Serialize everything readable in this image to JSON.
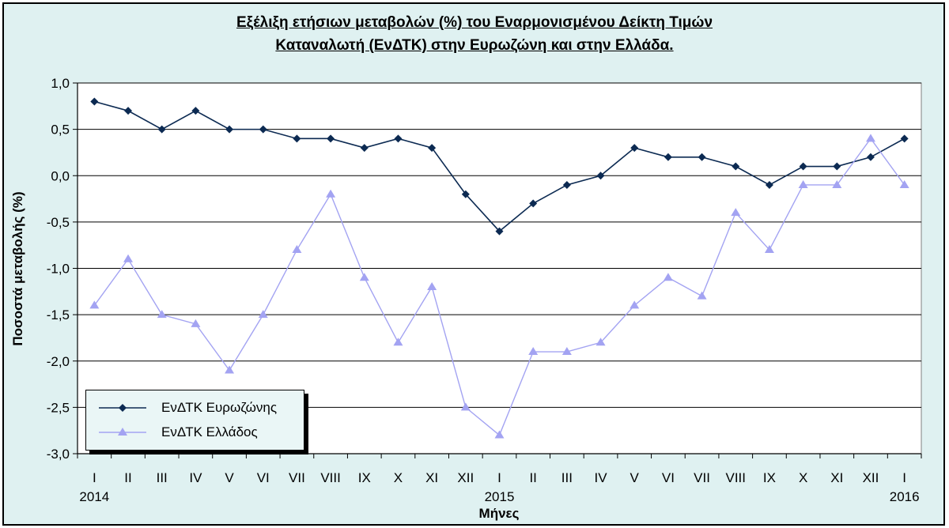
{
  "colors": {
    "background": "#dff1f1",
    "plot_area": "#ffffff",
    "eurozone": "#0c2a52",
    "greece": "#a3a3f2"
  },
  "chart_data": {
    "type": "line",
    "title_lines": [
      "Εξέλιξη ετήσιων μεταβολών (%) του Εναρμονισμένου Δείκτη Τιμών",
      "Καταναλωτή (ΕνΔΤΚ) στην Ευρωζώνη  και στην Ελλάδα."
    ],
    "xlabel": "Μήνες",
    "ylabel": "Ποσοστά μεταβολής (%)",
    "ylim": [
      -3.0,
      1.0
    ],
    "y_ticks": [
      1.0,
      0.5,
      0.0,
      -0.5,
      -1.0,
      -1.5,
      -2.0,
      -2.5,
      -3.0
    ],
    "y_tick_labels": [
      "1,0",
      "0,5",
      "0,0",
      "-0,5",
      "-1,0",
      "-1,5",
      "-2,0",
      "-2,5",
      "-3,0"
    ],
    "categories": [
      "I",
      "II",
      "III",
      "IV",
      "V",
      "VI",
      "VII",
      "VIII",
      "IX",
      "X",
      "XI",
      "XII",
      "I",
      "II",
      "III",
      "IV",
      "V",
      "VI",
      "VII",
      "VIII",
      "IX",
      "X",
      "XI",
      "XII",
      "I"
    ],
    "years": [
      {
        "label": "2014",
        "index": 0
      },
      {
        "label": "2015",
        "index": 12
      },
      {
        "label": "2016",
        "index": 24
      }
    ],
    "grid": "horizontal",
    "legend_position": "bottom-left",
    "series": [
      {
        "name": "ΕνΔΤΚ Ευρωζώνης",
        "marker": "diamond",
        "values": [
          0.8,
          0.7,
          0.5,
          0.7,
          0.5,
          0.5,
          0.4,
          0.4,
          0.3,
          0.4,
          0.3,
          -0.2,
          -0.6,
          -0.3,
          -0.1,
          0.0,
          0.3,
          0.2,
          0.2,
          0.1,
          -0.1,
          0.1,
          0.1,
          0.2,
          0.4
        ]
      },
      {
        "name": "ΕνΔΤΚ Ελλάδος",
        "marker": "triangle",
        "values": [
          -1.4,
          -0.9,
          -1.5,
          -1.6,
          -2.1,
          -1.5,
          -0.8,
          -0.2,
          -1.1,
          -1.8,
          -1.2,
          -2.5,
          -2.8,
          -1.9,
          -1.9,
          -1.8,
          -1.4,
          -1.1,
          -1.3,
          -0.4,
          -0.8,
          -0.1,
          -0.1,
          0.4,
          -0.1
        ]
      }
    ]
  }
}
